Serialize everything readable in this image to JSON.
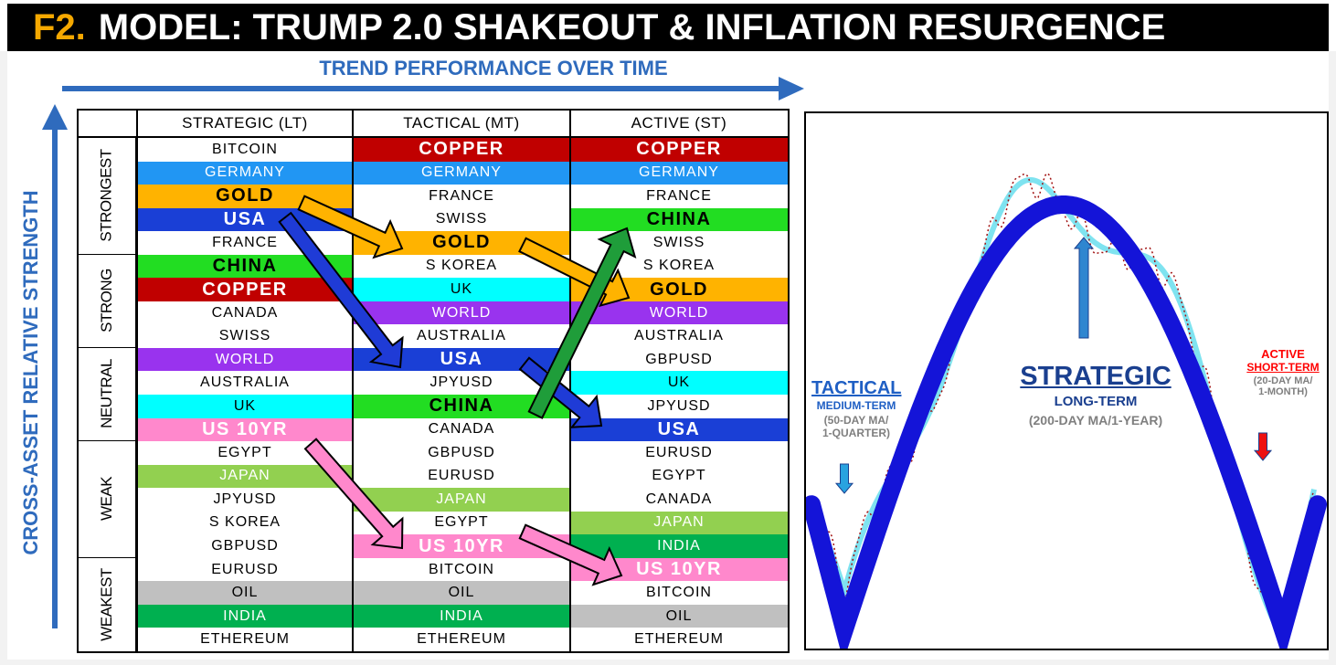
{
  "title": {
    "prefix": "F2.",
    "text": "MODEL: TRUMP 2.0 SHAKEOUT & INFLATION RESURGENCE"
  },
  "x_axis_label": "TREND PERFORMANCE OVER TIME",
  "y_axis_label": "CROSS-ASSET RELATIVE STRENGTH",
  "columns": [
    "STRATEGIC (LT)",
    "TACTICAL (MT)",
    "ACTIVE (ST)"
  ],
  "bands": [
    {
      "label": "STRONGEST",
      "rows": 5
    },
    {
      "label": "STRONG",
      "rows": 4
    },
    {
      "label": "NEUTRAL",
      "rows": 4
    },
    {
      "label": "WEAK",
      "rows": 5
    },
    {
      "label": "WEAKEST",
      "rows": 4
    }
  ],
  "colors": {
    "copper": "#c00000",
    "germany": "#2196f3",
    "gold": "#ffb300",
    "usa": "#1a3fd6",
    "china": "#22dd22",
    "world": "#9933ee",
    "uk": "#00ffff",
    "us10yr": "#ff88cc",
    "japan": "#92d050",
    "india": "#00b050",
    "oil": "#c0c0c0",
    "white": "#ffffff",
    "arrow_blue": "#1f3bd6",
    "arrow_green": "#1f9d3a",
    "arrow_gold": "#ffb300",
    "arrow_pink": "#ff88cc",
    "accent_blue": "#2f6bbd",
    "curve_blue": "#1414d8",
    "curve_cyan": "#7fe3f0",
    "curve_dotted": "#a01010",
    "red": "#ff0000"
  },
  "rankings": {
    "strategic": [
      "BITCOIN",
      "GERMANY",
      "GOLD",
      "USA",
      "FRANCE",
      "CHINA",
      "COPPER",
      "CANADA",
      "SWISS",
      "WORLD",
      "AUSTRALIA",
      "UK",
      "US 10YR",
      "EGYPT",
      "JAPAN",
      "JPYUSD",
      "S KOREA",
      "GBPUSD",
      "EURUSD",
      "OIL",
      "INDIA",
      "ETHEREUM"
    ],
    "tactical": [
      "COPPER",
      "GERMANY",
      "FRANCE",
      "SWISS",
      "GOLD",
      "S KOREA",
      "UK",
      "WORLD",
      "AUSTRALIA",
      "USA",
      "JPYUSD",
      "CHINA",
      "CANADA",
      "GBPUSD",
      "EURUSD",
      "JAPAN",
      "EGYPT",
      "US 10YR",
      "BITCOIN",
      "OIL",
      "INDIA",
      "ETHEREUM"
    ],
    "active": [
      "COPPER",
      "GERMANY",
      "FRANCE",
      "CHINA",
      "SWISS",
      "S KOREA",
      "GOLD",
      "WORLD",
      "AUSTRALIA",
      "GBPUSD",
      "UK",
      "JPYUSD",
      "USA",
      "EURUSD",
      "EGYPT",
      "CANADA",
      "JAPAN",
      "INDIA",
      "US 10YR",
      "BITCOIN",
      "OIL",
      "ETHEREUM"
    ]
  },
  "cycle_annotations": {
    "tactical": {
      "title": "TACTICAL",
      "sub1": "MEDIUM-TERM",
      "sub2": "(50-DAY MA/",
      "sub3": "1-QUARTER)"
    },
    "strategic": {
      "title": "STRATEGIC",
      "sub1": "LONG-TERM",
      "sub2": "(200-DAY MA/1-YEAR)"
    },
    "active": {
      "title": "ACTIVE",
      "sub1": "SHORT-TERM",
      "sub2": "(20-DAY MA/",
      "sub3": "1-MONTH)"
    }
  }
}
